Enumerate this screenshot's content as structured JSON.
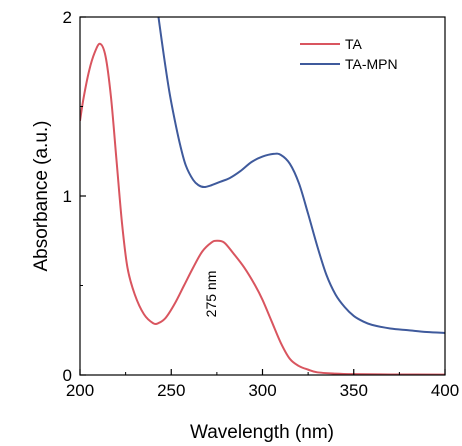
{
  "chart_data": {
    "type": "line",
    "xlabel": "Wavelength (nm)",
    "ylabel": "Absorbance (a.u.)",
    "xlim": [
      200,
      400
    ],
    "ylim": [
      0,
      2
    ],
    "x_ticks": [
      200,
      250,
      300,
      350,
      400
    ],
    "x_tick_labels": [
      "200",
      "250",
      "300",
      "350",
      "400"
    ],
    "y_ticks": [
      0,
      1,
      2
    ],
    "y_tick_labels": [
      "0",
      "1",
      "2"
    ],
    "grid": false,
    "legend_position": "top-right",
    "annotations": [
      {
        "text": "275 nm",
        "x": 275,
        "y": 0.45,
        "rotation": "vertical"
      }
    ],
    "series": [
      {
        "name": "TA",
        "color": "#d9555f",
        "points": [
          [
            200,
            1.42
          ],
          [
            202,
            1.55
          ],
          [
            205,
            1.7
          ],
          [
            208,
            1.8
          ],
          [
            211,
            1.85
          ],
          [
            214,
            1.78
          ],
          [
            217,
            1.55
          ],
          [
            220,
            1.2
          ],
          [
            223,
            0.85
          ],
          [
            226,
            0.6
          ],
          [
            230,
            0.45
          ],
          [
            235,
            0.34
          ],
          [
            240,
            0.29
          ],
          [
            243,
            0.29
          ],
          [
            247,
            0.32
          ],
          [
            252,
            0.4
          ],
          [
            257,
            0.5
          ],
          [
            262,
            0.6
          ],
          [
            267,
            0.69
          ],
          [
            272,
            0.74
          ],
          [
            275,
            0.75
          ],
          [
            279,
            0.74
          ],
          [
            284,
            0.68
          ],
          [
            290,
            0.6
          ],
          [
            296,
            0.5
          ],
          [
            300,
            0.42
          ],
          [
            305,
            0.3
          ],
          [
            310,
            0.18
          ],
          [
            315,
            0.09
          ],
          [
            320,
            0.05
          ],
          [
            325,
            0.03
          ],
          [
            330,
            0.015
          ],
          [
            340,
            0.008
          ],
          [
            350,
            0.005
          ],
          [
            370,
            0.003
          ],
          [
            400,
            0.002
          ]
        ]
      },
      {
        "name": "TA-MPN",
        "color": "#3f5a9c",
        "points": [
          [
            243,
            2.0
          ],
          [
            246,
            1.78
          ],
          [
            249,
            1.58
          ],
          [
            252,
            1.42
          ],
          [
            255,
            1.28
          ],
          [
            258,
            1.17
          ],
          [
            262,
            1.09
          ],
          [
            265,
            1.06
          ],
          [
            268,
            1.05
          ],
          [
            272,
            1.06
          ],
          [
            277,
            1.08
          ],
          [
            282,
            1.1
          ],
          [
            288,
            1.14
          ],
          [
            294,
            1.19
          ],
          [
            300,
            1.22
          ],
          [
            306,
            1.235
          ],
          [
            310,
            1.23
          ],
          [
            315,
            1.18
          ],
          [
            320,
            1.07
          ],
          [
            325,
            0.9
          ],
          [
            330,
            0.72
          ],
          [
            335,
            0.56
          ],
          [
            340,
            0.45
          ],
          [
            345,
            0.38
          ],
          [
            350,
            0.33
          ],
          [
            355,
            0.3
          ],
          [
            360,
            0.28
          ],
          [
            370,
            0.26
          ],
          [
            380,
            0.25
          ],
          [
            390,
            0.24
          ],
          [
            400,
            0.235
          ]
        ]
      }
    ]
  }
}
